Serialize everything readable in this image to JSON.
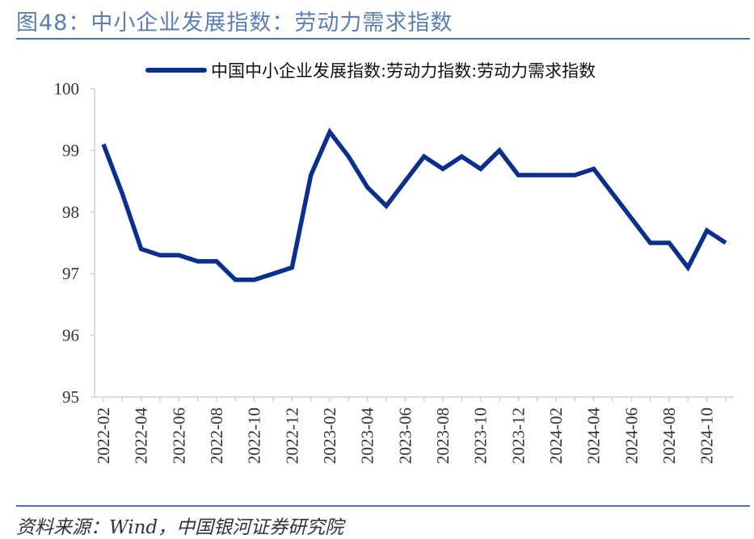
{
  "figure_title": "图48：中小企业发展指数：劳动力需求指数",
  "source": "资料来源：Wind，中国银河证券研究院",
  "colors": {
    "line": "#0b2f8c",
    "accent": "#4a70ad"
  },
  "chart_data": {
    "type": "line",
    "title": "",
    "xlabel": "",
    "ylabel": "",
    "ylim": [
      95,
      100
    ],
    "yticks": [
      95,
      96,
      97,
      98,
      99,
      100
    ],
    "x": [
      "2022-02",
      "2022-03",
      "2022-04",
      "2022-05",
      "2022-06",
      "2022-07",
      "2022-08",
      "2022-09",
      "2022-10",
      "2022-11",
      "2022-12",
      "2023-01",
      "2023-02",
      "2023-03",
      "2023-04",
      "2023-05",
      "2023-06",
      "2023-07",
      "2023-08",
      "2023-09",
      "2023-10",
      "2023-11",
      "2023-12",
      "2024-01",
      "2024-02",
      "2024-03",
      "2024-04",
      "2024-05",
      "2024-06",
      "2024-07",
      "2024-08",
      "2024-09",
      "2024-10",
      "2024-11"
    ],
    "xtick_labels": [
      "2022-02",
      "2022-04",
      "2022-06",
      "2022-08",
      "2022-10",
      "2022-12",
      "2023-02",
      "2023-04",
      "2023-06",
      "2023-08",
      "2023-10",
      "2023-12",
      "2024-02",
      "2024-04",
      "2024-06",
      "2024-08",
      "2024-10"
    ],
    "legend_position": "top",
    "grid": false,
    "series": [
      {
        "name": "中国中小企业发展指数:劳动力指数:劳动力需求指数",
        "values": [
          99.1,
          98.3,
          97.4,
          97.3,
          97.3,
          97.2,
          97.2,
          96.9,
          96.9,
          97.0,
          97.1,
          98.6,
          99.3,
          98.9,
          98.4,
          98.1,
          98.5,
          98.9,
          98.7,
          98.9,
          98.7,
          99.0,
          98.6,
          98.6,
          98.6,
          98.6,
          98.7,
          98.3,
          97.9,
          97.5,
          97.5,
          97.1,
          97.7,
          97.5
        ]
      }
    ]
  }
}
